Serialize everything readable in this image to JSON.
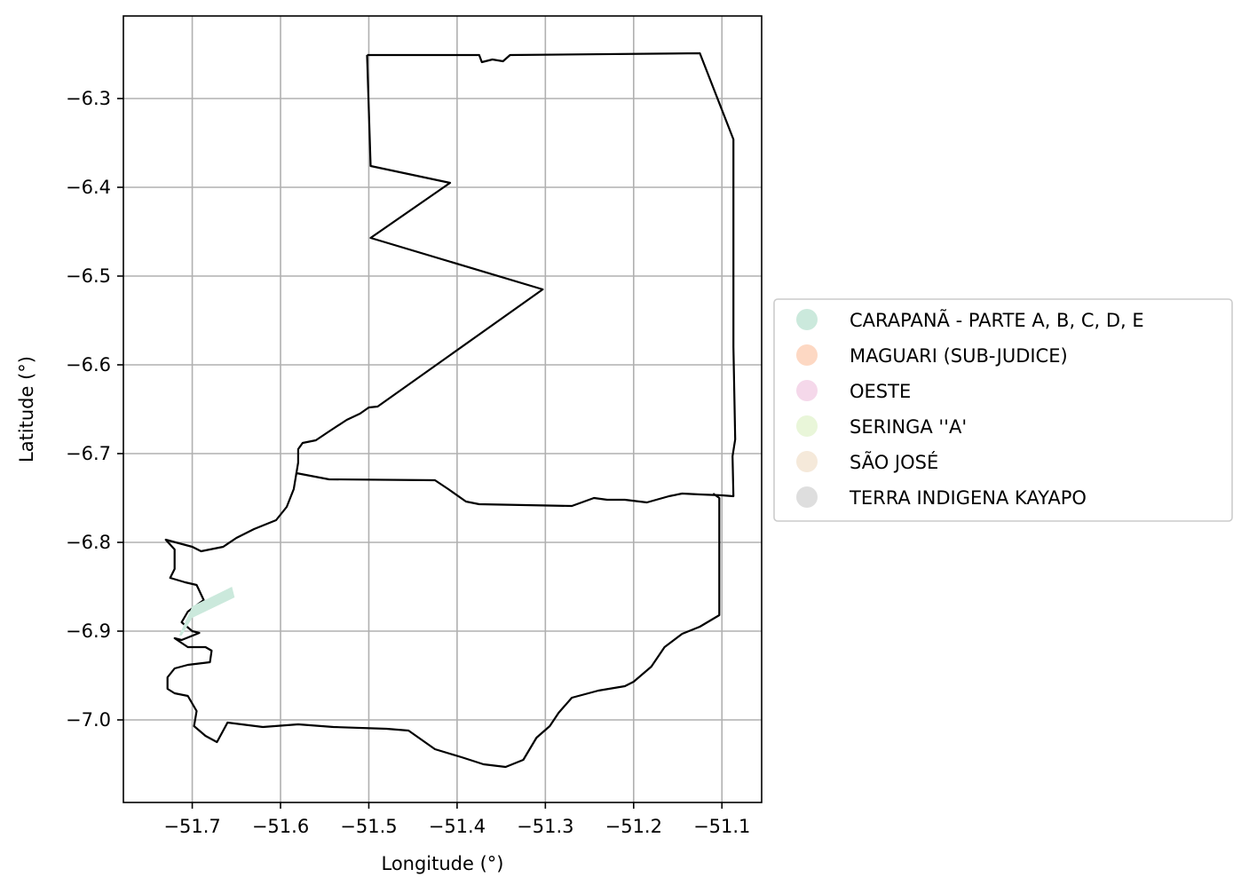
{
  "chart_data": {
    "type": "map",
    "xlabel": "Longitude (°)",
    "ylabel": "Latitude (°)",
    "xlim": [
      -51.778,
      -51.055
    ],
    "ylim": [
      -7.093,
      -6.207
    ],
    "xticks": [
      -51.7,
      -51.6,
      -51.5,
      -51.4,
      -51.3,
      -51.2,
      -51.1
    ],
    "yticks": [
      -6.3,
      -6.4,
      -6.5,
      -6.6,
      -6.7,
      -6.8,
      -6.9,
      -7.0
    ],
    "xtick_labels": [
      "−51.7",
      "−51.6",
      "−51.5",
      "−51.4",
      "−51.3",
      "−51.2",
      "−51.1"
    ],
    "ytick_labels": [
      "−6.3",
      "−6.4",
      "−6.5",
      "−6.6",
      "−6.7",
      "−6.8",
      "−6.9",
      "−7.0"
    ],
    "grid": true,
    "legend_position": "center-right-outside",
    "legend": [
      {
        "label": "CARAPANÃ - PARTE A, B, C, D, E",
        "color": "#cbe9dc"
      },
      {
        "label": "MAGUARI (SUB-JUDICE)",
        "color": "#fdd8c3"
      },
      {
        "label": "OESTE",
        "color": "#f5d8ea"
      },
      {
        "label": "SERINGA ''A'",
        "color": "#e9f6d9"
      },
      {
        "label": "SÃO JOSÉ",
        "color": "#f5e9da"
      },
      {
        "label": "TERRA INDIGENA KAYAPO",
        "color": "#dedede"
      }
    ],
    "features": [
      {
        "name": "northern-boundary",
        "kind": "outline",
        "coords": [
          [
            -51.502,
            -6.251
          ],
          [
            -51.375,
            -6.251
          ],
          [
            -51.372,
            -6.259
          ],
          [
            -51.36,
            -6.256
          ],
          [
            -51.348,
            -6.258
          ],
          [
            -51.34,
            -6.251
          ],
          [
            -51.125,
            -6.249
          ],
          [
            -51.087,
            -6.346
          ],
          [
            -51.087,
            -6.58
          ],
          [
            -51.085,
            -6.684
          ],
          [
            -51.088,
            -6.703
          ],
          [
            -51.087,
            -6.748
          ],
          [
            -51.1,
            -6.747
          ],
          [
            -51.125,
            -6.746
          ],
          [
            -51.145,
            -6.745
          ],
          [
            -51.16,
            -6.748
          ],
          [
            -51.185,
            -6.755
          ],
          [
            -51.21,
            -6.752
          ],
          [
            -51.23,
            -6.752
          ],
          [
            -51.245,
            -6.75
          ],
          [
            -51.27,
            -6.759
          ],
          [
            -51.375,
            -6.757
          ],
          [
            -51.39,
            -6.754
          ],
          [
            -51.41,
            -6.74
          ],
          [
            -51.425,
            -6.73
          ],
          [
            -51.545,
            -6.729
          ],
          [
            -51.582,
            -6.722
          ],
          [
            -51.58,
            -6.71
          ],
          [
            -51.58,
            -6.695
          ],
          [
            -51.575,
            -6.688
          ],
          [
            -51.56,
            -6.685
          ],
          [
            -51.545,
            -6.675
          ],
          [
            -51.525,
            -6.662
          ],
          [
            -51.51,
            -6.655
          ],
          [
            -51.5,
            -6.648
          ],
          [
            -51.49,
            -6.647
          ],
          [
            -51.303,
            -6.515
          ],
          [
            -51.498,
            -6.457
          ],
          [
            -51.408,
            -6.395
          ],
          [
            -51.498,
            -6.376
          ],
          [
            -51.502,
            -6.251
          ]
        ]
      },
      {
        "name": "southern-boundary",
        "kind": "outline",
        "coords": [
          [
            -51.582,
            -6.722
          ],
          [
            -51.585,
            -6.74
          ],
          [
            -51.593,
            -6.76
          ],
          [
            -51.605,
            -6.775
          ],
          [
            -51.63,
            -6.785
          ],
          [
            -51.65,
            -6.795
          ],
          [
            -51.665,
            -6.805
          ],
          [
            -51.69,
            -6.81
          ],
          [
            -51.7,
            -6.805
          ],
          [
            -51.73,
            -6.797
          ],
          [
            -51.72,
            -6.808
          ],
          [
            -51.72,
            -6.83
          ],
          [
            -51.725,
            -6.84
          ],
          [
            -51.708,
            -6.845
          ],
          [
            -51.695,
            -6.848
          ],
          [
            -51.687,
            -6.865
          ],
          [
            -51.705,
            -6.878
          ],
          [
            -51.712,
            -6.89
          ],
          [
            -51.7,
            -6.9
          ],
          [
            -51.692,
            -6.902
          ],
          [
            -51.712,
            -6.91
          ],
          [
            -51.72,
            -6.908
          ],
          [
            -51.705,
            -6.918
          ],
          [
            -51.685,
            -6.918
          ],
          [
            -51.678,
            -6.922
          ],
          [
            -51.68,
            -6.935
          ],
          [
            -51.705,
            -6.938
          ],
          [
            -51.72,
            -6.942
          ],
          [
            -51.728,
            -6.952
          ],
          [
            -51.728,
            -6.965
          ],
          [
            -51.72,
            -6.97
          ],
          [
            -51.705,
            -6.973
          ],
          [
            -51.695,
            -6.99
          ],
          [
            -51.698,
            -7.007
          ],
          [
            -51.685,
            -7.018
          ],
          [
            -51.672,
            -7.025
          ],
          [
            -51.66,
            -7.003
          ],
          [
            -51.62,
            -7.008
          ],
          [
            -51.58,
            -7.005
          ],
          [
            -51.54,
            -7.008
          ],
          [
            -51.48,
            -7.01
          ],
          [
            -51.455,
            -7.012
          ],
          [
            -51.425,
            -7.033
          ],
          [
            -51.395,
            -7.042
          ],
          [
            -51.37,
            -7.05
          ],
          [
            -51.345,
            -7.053
          ],
          [
            -51.325,
            -7.045
          ],
          [
            -51.31,
            -7.02
          ],
          [
            -51.295,
            -7.007
          ],
          [
            -51.285,
            -6.992
          ],
          [
            -51.27,
            -6.975
          ],
          [
            -51.24,
            -6.967
          ],
          [
            -51.21,
            -6.962
          ],
          [
            -51.2,
            -6.957
          ],
          [
            -51.18,
            -6.94
          ],
          [
            -51.165,
            -6.918
          ],
          [
            -51.145,
            -6.903
          ],
          [
            -51.125,
            -6.895
          ],
          [
            -51.103,
            -6.882
          ],
          [
            -51.103,
            -6.75
          ],
          [
            -51.11,
            -6.745
          ]
        ]
      },
      {
        "name": "carapana-parcel",
        "kind": "fill",
        "color": "#cbe9dc",
        "coords": [
          [
            -51.715,
            -6.905
          ],
          [
            -51.7,
            -6.872
          ],
          [
            -51.655,
            -6.85
          ],
          [
            -51.652,
            -6.862
          ],
          [
            -51.7,
            -6.885
          ],
          [
            -51.712,
            -6.905
          ]
        ]
      }
    ]
  }
}
